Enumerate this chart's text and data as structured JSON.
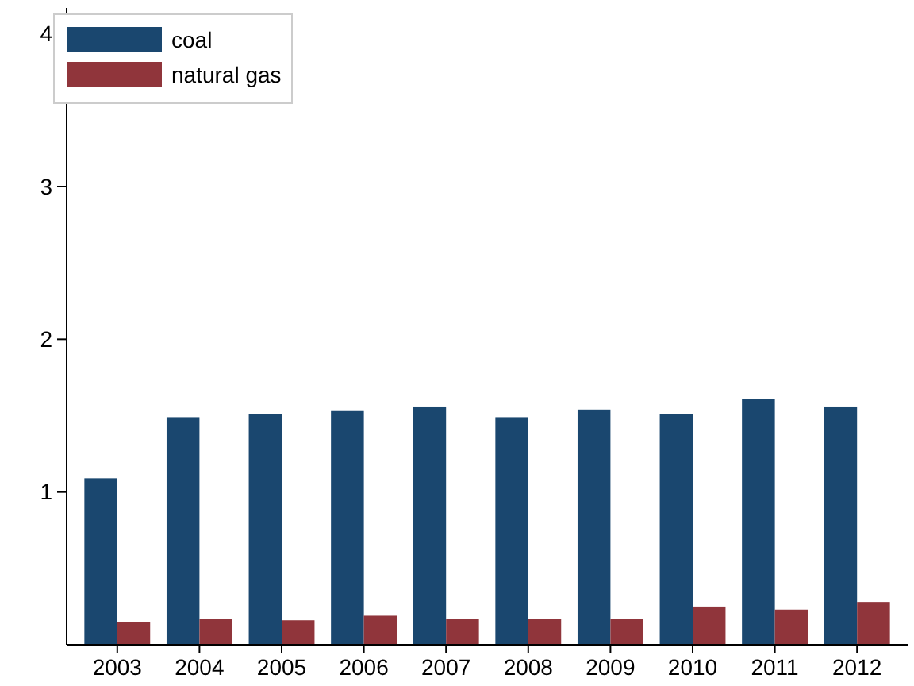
{
  "chart_data": {
    "type": "bar",
    "categories": [
      "2003",
      "2004",
      "2005",
      "2006",
      "2007",
      "2008",
      "2009",
      "2010",
      "2011",
      "2012"
    ],
    "series": [
      {
        "name": "coal",
        "color": "#1a476f",
        "values": [
          1.09,
          1.49,
          1.51,
          1.53,
          1.56,
          1.49,
          1.54,
          1.51,
          1.61,
          1.56
        ]
      },
      {
        "name": "natural gas",
        "color": "#90353b",
        "values": [
          0.15,
          0.17,
          0.16,
          0.19,
          0.17,
          0.17,
          0.17,
          0.25,
          0.23,
          0.28
        ]
      }
    ],
    "ylim": [
      0,
      4.17
    ],
    "yticks": [
      1,
      2,
      3,
      4
    ],
    "grid": false,
    "legend": "top left"
  }
}
